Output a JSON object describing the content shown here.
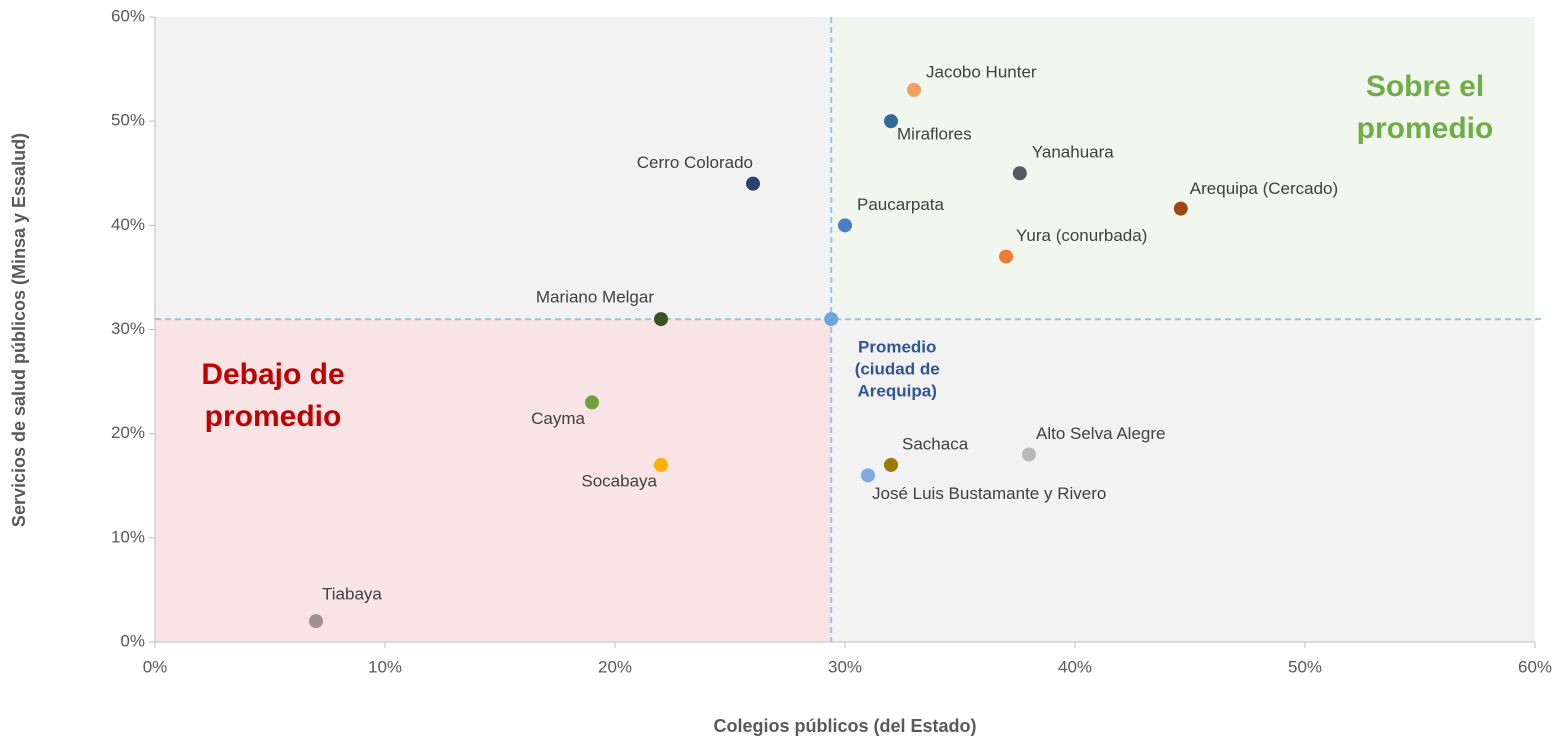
{
  "chart_data": {
    "type": "scatter",
    "x_label": "Colegios públicos (del Estado)",
    "y_label": "Servicios de salud públicos (Minsa y Essalud)",
    "xlim": [
      0,
      60
    ],
    "ylim": [
      0,
      60
    ],
    "xticks": [
      {
        "value": 0,
        "label": "0%"
      },
      {
        "value": 10,
        "label": "10%"
      },
      {
        "value": 20,
        "label": "20%"
      },
      {
        "value": 30,
        "label": "30%"
      },
      {
        "value": 40,
        "label": "40%"
      },
      {
        "value": 50,
        "label": "50%"
      },
      {
        "value": 60,
        "label": "60%"
      }
    ],
    "yticks": [
      {
        "value": 0,
        "label": "0%"
      },
      {
        "value": 10,
        "label": "10%"
      },
      {
        "value": 20,
        "label": "20%"
      },
      {
        "value": 30,
        "label": "30%"
      },
      {
        "value": 40,
        "label": "40%"
      },
      {
        "value": 50,
        "label": "50%"
      },
      {
        "value": 60,
        "label": "60%"
      }
    ],
    "points": [
      {
        "name": "Jacobo Hunter",
        "x": 33.0,
        "y": 53,
        "color": "#f0a060"
      },
      {
        "name": "Miraflores",
        "x": 32.0,
        "y": 50,
        "color": "#2e6b9a"
      },
      {
        "name": "Cerro Colorado",
        "x": 26.0,
        "y": 44,
        "color": "#2b3f73"
      },
      {
        "name": "Yanahuara",
        "x": 37.6,
        "y": 45,
        "color": "#555a5e"
      },
      {
        "name": "Arequipa (Cercado)",
        "x": 44.6,
        "y": 41.6,
        "color": "#9c4a12"
      },
      {
        "name": "Paucarpata",
        "x": 30.0,
        "y": 40,
        "color": "#4a7dc8"
      },
      {
        "name": "Yura (conurbada)",
        "x": 37.0,
        "y": 37,
        "color": "#ed7d31"
      },
      {
        "name": "Mariano Melgar",
        "x": 22.0,
        "y": 31,
        "color": "#3b5323"
      },
      {
        "name": "Cayma",
        "x": 19.0,
        "y": 23,
        "color": "#70a040"
      },
      {
        "name": "Socabaya",
        "x": 22.0,
        "y": 17,
        "color": "#ffb000"
      },
      {
        "name": "Sachaca",
        "x": 32.0,
        "y": 17,
        "color": "#9a7a00"
      },
      {
        "name": "José Luis Bustamante y Rivero",
        "x": 31.0,
        "y": 16,
        "color": "#80aadd"
      },
      {
        "name": "Alto Selva Alegre",
        "x": 38.0,
        "y": 18,
        "color": "#b8b8b8"
      },
      {
        "name": "Tiabaya",
        "x": 7.0,
        "y": 2,
        "color": "#a09090"
      }
    ],
    "average": {
      "label": [
        "Promedio",
        "(ciudad de",
        "Arequipa)"
      ],
      "x": 29.4,
      "y": 31,
      "color": "#6fa3dc"
    },
    "annotations": [
      {
        "text": [
          "Sobre el",
          "promedio"
        ],
        "color": "#70ad47"
      },
      {
        "text": [
          "Debajo de",
          "promedio"
        ],
        "color": "#c00000"
      }
    ]
  }
}
